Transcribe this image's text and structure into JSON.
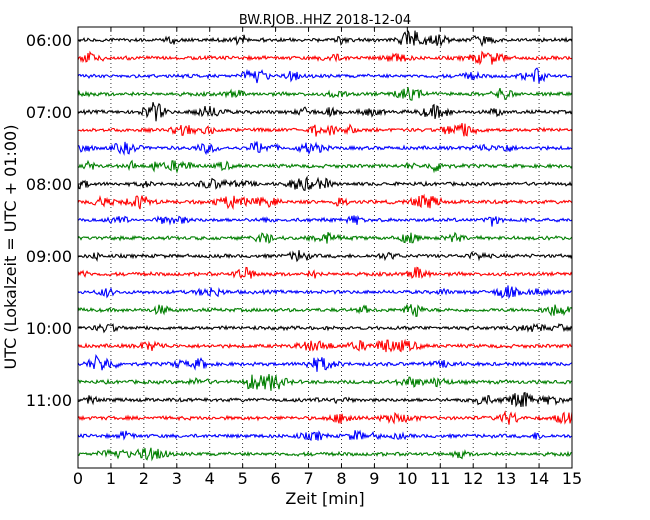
{
  "chart_data": {
    "type": "line",
    "title": "BW.RJOB..HHZ 2018-12-04",
    "xlabel": "Zeit  [min]",
    "ylabel": "UTC (Lokalzeit = UTC + 01:00)",
    "xlim": [
      0,
      15
    ],
    "x_ticks": [
      "0",
      "1",
      "2",
      "3",
      "4",
      "5",
      "6",
      "7",
      "8",
      "9",
      "10",
      "11",
      "12",
      "13",
      "14",
      "15"
    ],
    "y_ticks": [
      "06:00",
      "07:00",
      "08:00",
      "09:00",
      "10:00",
      "11:00"
    ],
    "trace_count": 24,
    "trace_interval_minutes": 15,
    "start_time": "06:00",
    "series_colors": [
      "#000000",
      "#ff0000",
      "#0000ff",
      "#007f00"
    ],
    "grid": "vertical dotted at each minute",
    "chart_type_detail": "dayplot (seismogram traces, one row per 15 minutes)"
  }
}
